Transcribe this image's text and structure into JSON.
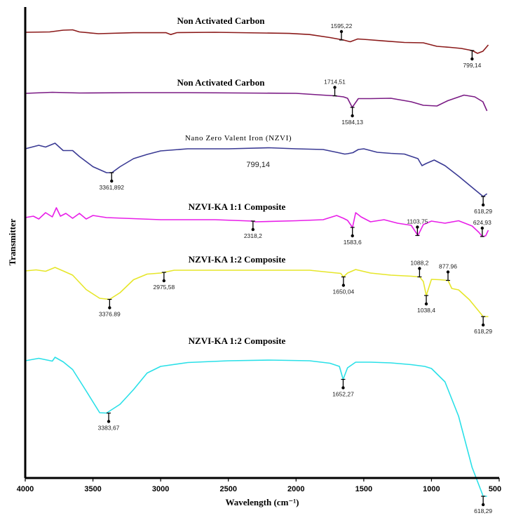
{
  "chart_data": {
    "type": "line",
    "xlabel": "Wavelength (cm⁻¹)",
    "ylabel": "Transmitter",
    "xlim": [
      4000,
      500
    ],
    "x_reversed": true,
    "xticks": [
      "4000",
      "3500",
      "3000",
      "2500",
      "2000",
      "1500",
      "1000",
      "500"
    ],
    "yticks": false,
    "grid": false,
    "legend": "none",
    "series": [
      {
        "name": "Non Activated Carbon",
        "color": "#8b1a1a",
        "points": [
          [
            4000,
            0
          ],
          [
            3820,
            0.5
          ],
          [
            3720,
            3
          ],
          [
            3650,
            3.5
          ],
          [
            3600,
            0.5
          ],
          [
            3460,
            -2
          ],
          [
            3200,
            -0.6
          ],
          [
            2960,
            -0.6
          ],
          [
            2925,
            -3.2
          ],
          [
            2880,
            -0.5
          ],
          [
            2600,
            0
          ],
          [
            2250,
            -1
          ],
          [
            2050,
            -1.6
          ],
          [
            1900,
            -3.2
          ],
          [
            1750,
            -7.5
          ],
          [
            1650,
            -11
          ],
          [
            1600,
            -13.5
          ],
          [
            1545,
            -9.5
          ],
          [
            1470,
            -10.5
          ],
          [
            1360,
            -12.2
          ],
          [
            1200,
            -14.5
          ],
          [
            1060,
            -15
          ],
          [
            960,
            -20
          ],
          [
            860,
            -21.5
          ],
          [
            780,
            -23
          ],
          [
            700,
            -26
          ],
          [
            660,
            -30
          ],
          [
            620,
            -27
          ],
          [
            580,
            -18
          ]
        ]
      },
      {
        "name": "Non Activated Carbon",
        "color": "#7a1a84",
        "points": [
          [
            4000,
            0
          ],
          [
            3800,
            1.5
          ],
          [
            3600,
            0.5
          ],
          [
            3200,
            1
          ],
          [
            2800,
            1
          ],
          [
            2400,
            0.5
          ],
          [
            2000,
            0
          ],
          [
            1800,
            -2.5
          ],
          [
            1715,
            -3.5
          ],
          [
            1650,
            -5
          ],
          [
            1620,
            -7
          ],
          [
            1585,
            -20
          ],
          [
            1540,
            -7.5
          ],
          [
            1450,
            -7.5
          ],
          [
            1300,
            -7
          ],
          [
            1150,
            -12
          ],
          [
            1060,
            -17
          ],
          [
            960,
            -18
          ],
          [
            880,
            -10.5
          ],
          [
            760,
            -2.5
          ],
          [
            680,
            -5
          ],
          [
            620,
            -12
          ],
          [
            590,
            -25
          ]
        ]
      },
      {
        "name": "Nano Zero Valent Iron (NZVI)",
        "color": "#3a3a94",
        "points": [
          [
            4000,
            0
          ],
          [
            3900,
            5
          ],
          [
            3850,
            2.5
          ],
          [
            3780,
            8
          ],
          [
            3720,
            -2.5
          ],
          [
            3650,
            -2.5
          ],
          [
            3600,
            -11
          ],
          [
            3500,
            -25.5
          ],
          [
            3400,
            -34
          ],
          [
            3360,
            -34
          ],
          [
            3300,
            -25.5
          ],
          [
            3200,
            -14
          ],
          [
            3100,
            -8
          ],
          [
            3000,
            -3
          ],
          [
            2800,
            0
          ],
          [
            2500,
            0
          ],
          [
            2200,
            1.5
          ],
          [
            2000,
            0
          ],
          [
            1800,
            -1
          ],
          [
            1700,
            -5
          ],
          [
            1640,
            -7.5
          ],
          [
            1620,
            -7
          ],
          [
            1580,
            -5.5
          ],
          [
            1540,
            -1
          ],
          [
            1500,
            0
          ],
          [
            1400,
            -5
          ],
          [
            1300,
            -6.5
          ],
          [
            1200,
            -7.5
          ],
          [
            1100,
            -14
          ],
          [
            1070,
            -24
          ],
          [
            1040,
            -21
          ],
          [
            980,
            -16
          ],
          [
            900,
            -24
          ],
          [
            800,
            -39
          ],
          [
            700,
            -55
          ],
          [
            618,
            -68
          ],
          [
            590,
            -64
          ]
        ]
      },
      {
        "name": "NZVI-KA 1:1 Composite",
        "color": "#e81ee8",
        "points": [
          [
            4000,
            0
          ],
          [
            3940,
            2
          ],
          [
            3900,
            -2
          ],
          [
            3850,
            7
          ],
          [
            3800,
            1
          ],
          [
            3770,
            14
          ],
          [
            3740,
            2
          ],
          [
            3700,
            6
          ],
          [
            3650,
            -1
          ],
          [
            3600,
            6
          ],
          [
            3550,
            -2
          ],
          [
            3500,
            3
          ],
          [
            3400,
            0
          ],
          [
            3000,
            -3
          ],
          [
            2600,
            -3
          ],
          [
            2320,
            -5
          ],
          [
            2300,
            -6
          ],
          [
            2000,
            -4.5
          ],
          [
            1800,
            -3
          ],
          [
            1700,
            3
          ],
          [
            1650,
            -1
          ],
          [
            1620,
            -4
          ],
          [
            1583,
            -14
          ],
          [
            1560,
            7
          ],
          [
            1520,
            1
          ],
          [
            1450,
            -6
          ],
          [
            1350,
            -3
          ],
          [
            1250,
            -8
          ],
          [
            1150,
            -11
          ],
          [
            1100,
            -25.5
          ],
          [
            1060,
            -10
          ],
          [
            1000,
            -5
          ],
          [
            900,
            -8
          ],
          [
            800,
            -4.5
          ],
          [
            700,
            -12
          ],
          [
            650,
            -21
          ],
          [
            625,
            -27
          ],
          [
            600,
            -26
          ],
          [
            580,
            -18
          ]
        ]
      },
      {
        "name": "NZVI-KA 1:2 Composite",
        "color": "#e6e62a",
        "points": [
          [
            4000,
            0
          ],
          [
            3920,
            1.5
          ],
          [
            3850,
            -0.5
          ],
          [
            3780,
            5
          ],
          [
            3720,
            0
          ],
          [
            3650,
            -6
          ],
          [
            3550,
            -26.5
          ],
          [
            3450,
            -39
          ],
          [
            3376.89,
            -40.5
          ],
          [
            3300,
            -31
          ],
          [
            3200,
            -12.5
          ],
          [
            3100,
            -4.5
          ],
          [
            3000,
            -3
          ],
          [
            2975.58,
            -2
          ],
          [
            2900,
            1
          ],
          [
            2600,
            1
          ],
          [
            2200,
            1
          ],
          [
            1900,
            1
          ],
          [
            1750,
            -2
          ],
          [
            1670,
            -3.5
          ],
          [
            1650,
            -8.5
          ],
          [
            1620,
            -3
          ],
          [
            1560,
            2
          ],
          [
            1450,
            -3
          ],
          [
            1300,
            -6
          ],
          [
            1150,
            -7.5
          ],
          [
            1088.2,
            -8.5
          ],
          [
            1060,
            -15
          ],
          [
            1038.4,
            -35
          ],
          [
            1000,
            -12
          ],
          [
            940,
            -12.5
          ],
          [
            877.96,
            -13.5
          ],
          [
            850,
            -25
          ],
          [
            800,
            -27
          ],
          [
            720,
            -41
          ],
          [
            618.29,
            -65
          ],
          [
            580,
            -65
          ]
        ]
      },
      {
        "name": "NZVI-KA 1:2 Composite",
        "color": "#2ae0e8",
        "points": [
          [
            4000,
            0
          ],
          [
            3900,
            3.5
          ],
          [
            3800,
            -0.5
          ],
          [
            3780,
            5
          ],
          [
            3720,
            -1.5
          ],
          [
            3650,
            -12.5
          ],
          [
            3550,
            -43
          ],
          [
            3450,
            -74
          ],
          [
            3400,
            -74.5
          ],
          [
            3300,
            -62
          ],
          [
            3200,
            -41
          ],
          [
            3100,
            -17.5
          ],
          [
            3000,
            -8
          ],
          [
            2800,
            -2.5
          ],
          [
            2500,
            0
          ],
          [
            2200,
            1
          ],
          [
            1900,
            0
          ],
          [
            1750,
            -3.5
          ],
          [
            1680,
            -8
          ],
          [
            1652.27,
            -26.5
          ],
          [
            1620,
            -10
          ],
          [
            1560,
            -2
          ],
          [
            1450,
            -2
          ],
          [
            1300,
            -3
          ],
          [
            1150,
            -5.5
          ],
          [
            1050,
            -8
          ],
          [
            1000,
            -11
          ],
          [
            900,
            -30
          ],
          [
            800,
            -79
          ],
          [
            700,
            -152
          ],
          [
            618.29,
            -193
          ],
          [
            590,
            -193
          ]
        ]
      }
    ],
    "annotations": [
      {
        "series": 0,
        "label": "1595,22",
        "x": 1665,
        "y": -11,
        "dir": "up"
      },
      {
        "series": 0,
        "label": "799,14",
        "x": 700,
        "y": -26,
        "dir": "down"
      },
      {
        "series": 1,
        "label": "1714,51",
        "x": 1714,
        "y": -3.5,
        "dir": "up"
      },
      {
        "series": 1,
        "label": "1584,13",
        "x": 1584.13,
        "y": -20,
        "dir": "down"
      },
      {
        "series": 2,
        "label": "3361,892",
        "x": 3361.892,
        "y": -34,
        "dir": "down"
      },
      {
        "series": 2,
        "label": "618,29",
        "x": 618.29,
        "y": -68,
        "dir": "down"
      },
      {
        "series": 3,
        "label": "2318,2",
        "x": 2318.2,
        "y": -5,
        "dir": "down"
      },
      {
        "series": 3,
        "label": "1583,6",
        "x": 1583.6,
        "y": -14,
        "dir": "down"
      },
      {
        "series": 3,
        "label": "1103,75",
        "x": 1103.75,
        "y": -25.5,
        "dir": "up"
      },
      {
        "series": 3,
        "label": "624,93",
        "x": 624.93,
        "y": -27,
        "dir": "up"
      },
      {
        "series": 4,
        "label": "3376.89",
        "x": 3376.89,
        "y": -40.5,
        "dir": "down"
      },
      {
        "series": 4,
        "label": "2975,58",
        "x": 2975.58,
        "y": -2,
        "dir": "down"
      },
      {
        "series": 4,
        "label": "1650,04",
        "x": 1650.04,
        "y": -8.5,
        "dir": "down"
      },
      {
        "series": 4,
        "label": "1088,2",
        "x": 1088.2,
        "y": -8.5,
        "dir": "up"
      },
      {
        "series": 4,
        "label": "1038,4",
        "x": 1038.4,
        "y": -35,
        "dir": "down"
      },
      {
        "series": 4,
        "label": "877.96",
        "x": 877.96,
        "y": -13.5,
        "dir": "up"
      },
      {
        "series": 4,
        "label": "618,29",
        "x": 618.29,
        "y": -65,
        "dir": "down"
      },
      {
        "series": 5,
        "label": "3383,67",
        "x": 3383.67,
        "y": -74.5,
        "dir": "down"
      },
      {
        "series": 5,
        "label": "1652,27",
        "x": 1652.27,
        "y": -26.5,
        "dir": "down"
      },
      {
        "series": 5,
        "label": "618,29",
        "x": 618.29,
        "y": -193,
        "dir": "down"
      }
    ],
    "free_text": [
      {
        "label": "799,14",
        "series": 2,
        "x": 2280,
        "y": -26
      }
    ]
  }
}
